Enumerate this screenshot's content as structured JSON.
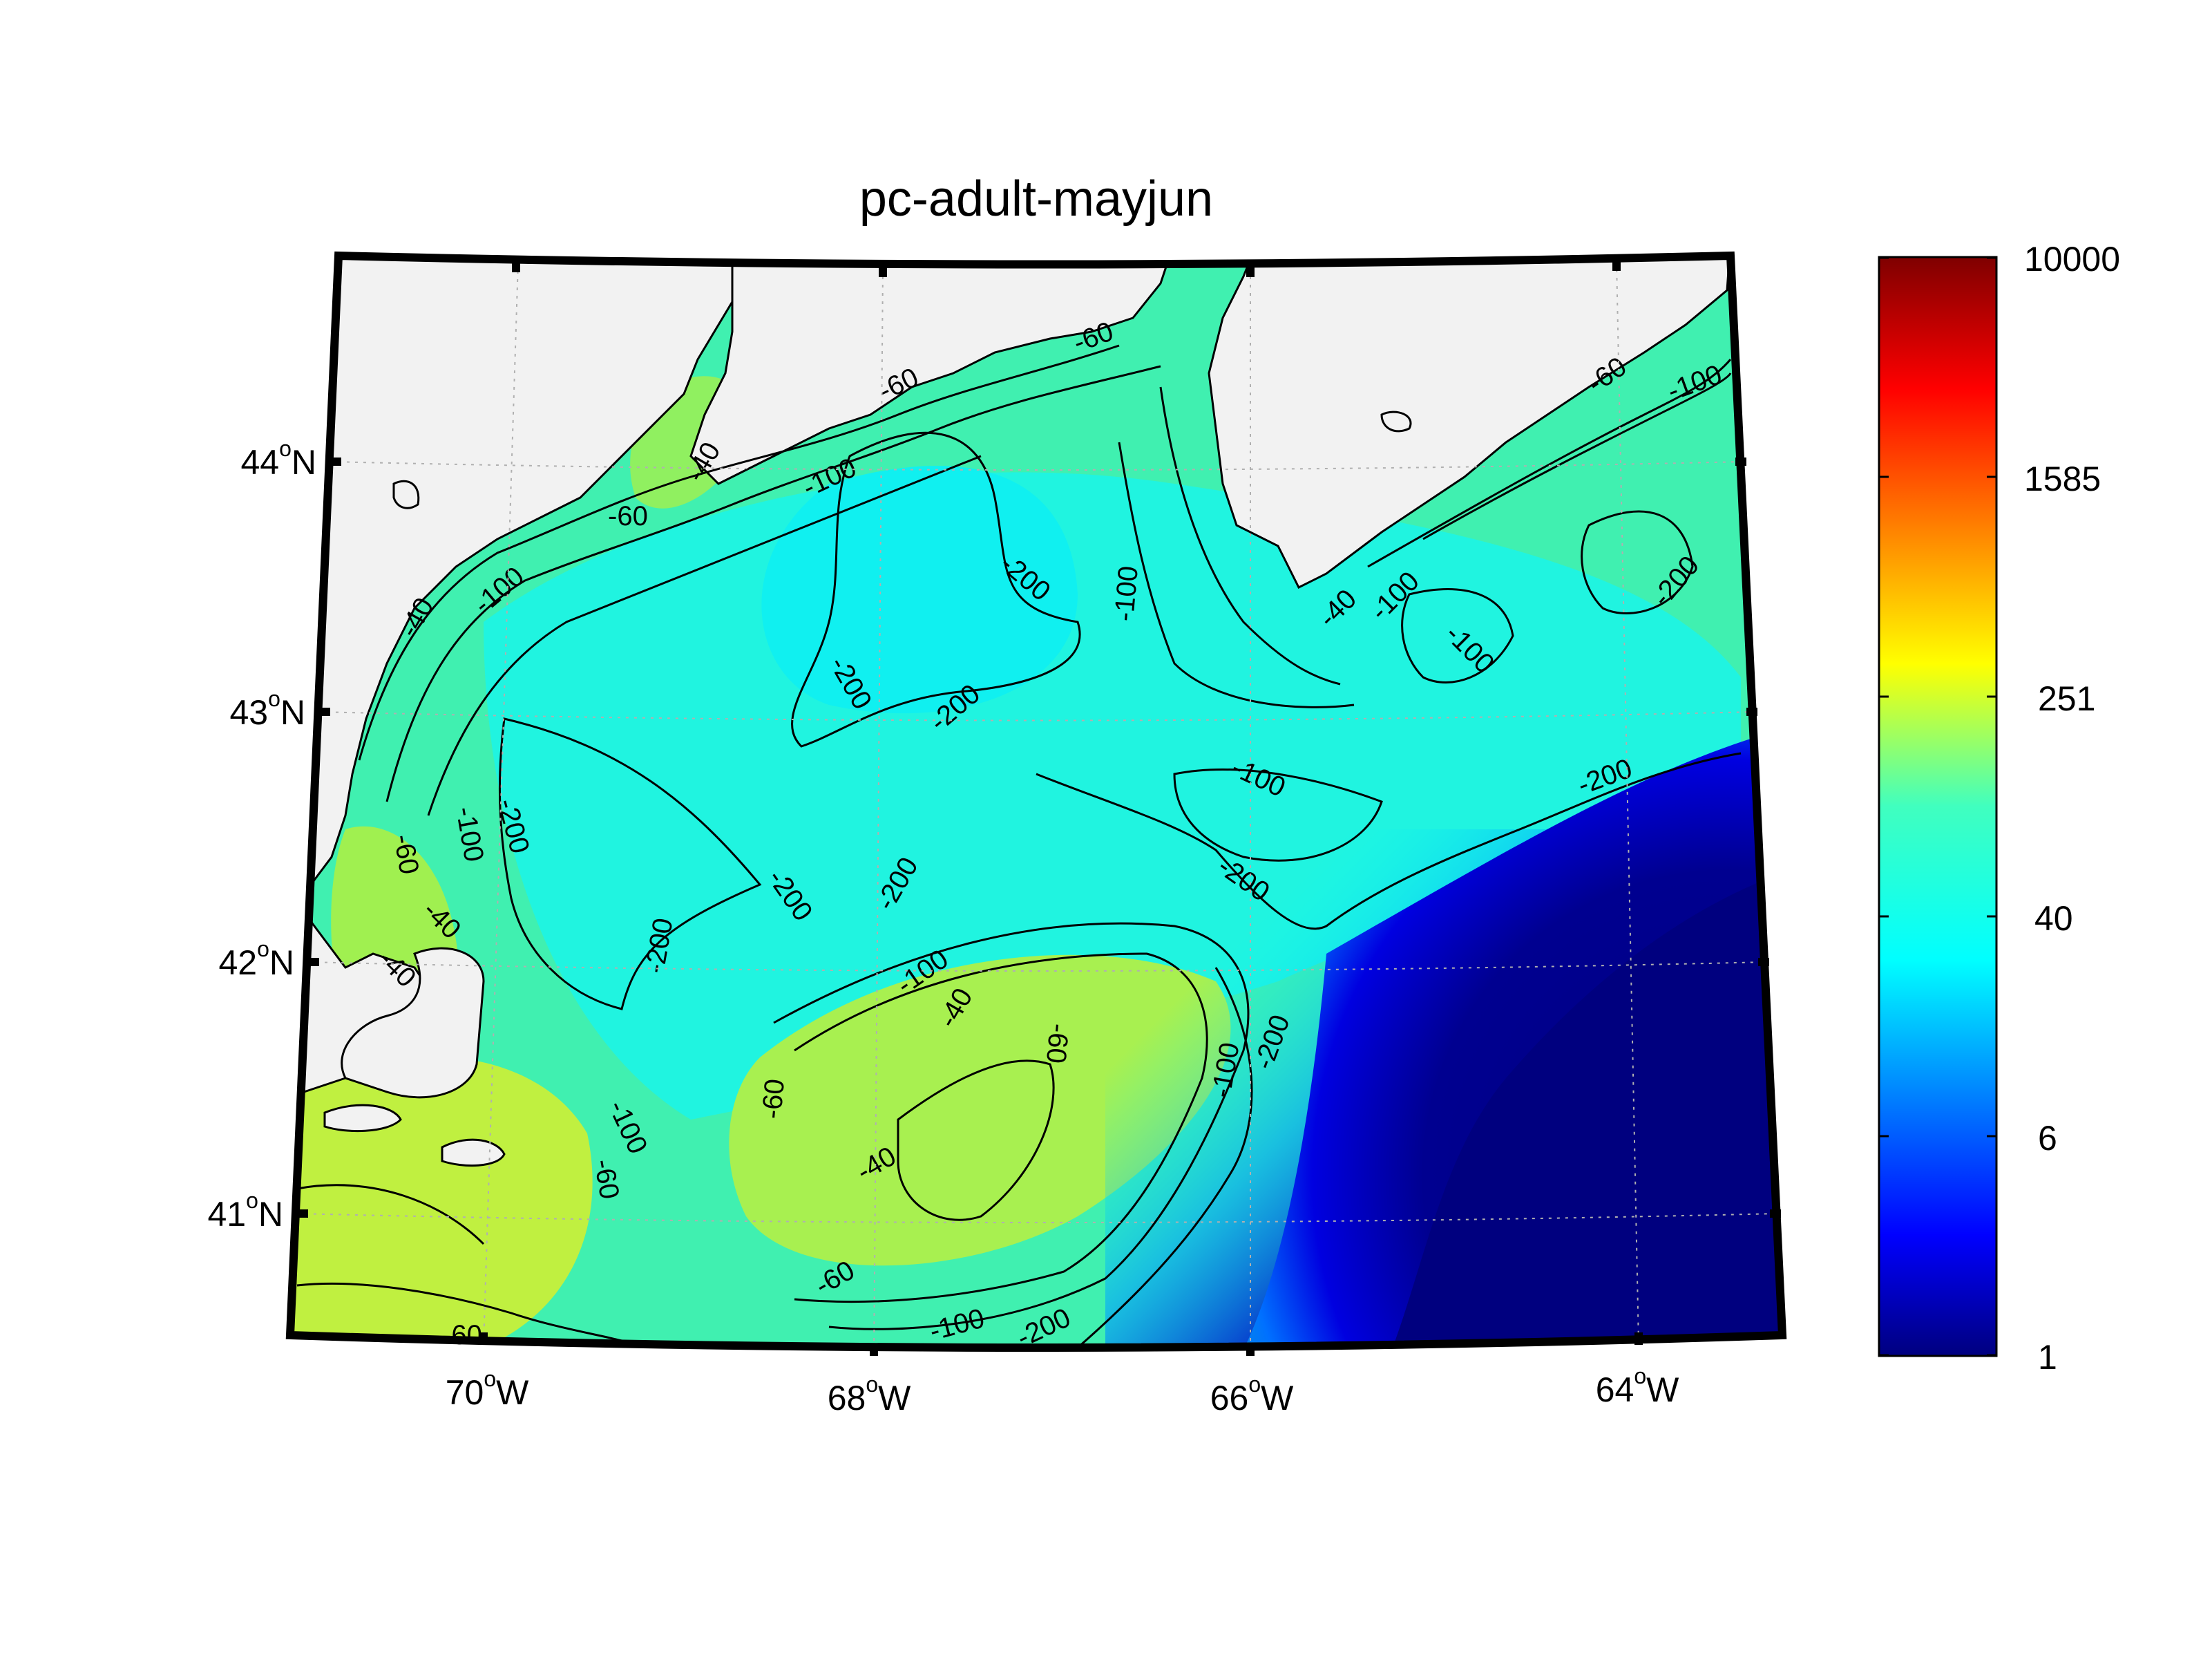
{
  "title": "pc-adult-mayjun",
  "map": {
    "lon_range": [
      -71,
      -63.1
    ],
    "lat_range": [
      40.5,
      44.75
    ],
    "longitude_ticks": [
      {
        "deg": "70",
        "hemi": "W"
      },
      {
        "deg": "68",
        "hemi": "W"
      },
      {
        "deg": "66",
        "hemi": "W"
      },
      {
        "deg": "64",
        "hemi": "W"
      }
    ],
    "latitude_ticks": [
      {
        "deg": "44",
        "hemi": "N"
      },
      {
        "deg": "43",
        "hemi": "N"
      },
      {
        "deg": "42",
        "hemi": "N"
      },
      {
        "deg": "41",
        "hemi": "N"
      }
    ],
    "degree_symbol": "o",
    "grid": "dotted",
    "land_color": "#f2f2f2",
    "contour_labels": [
      "-40",
      "-40",
      "-40",
      "-40",
      "-40",
      "-40",
      "-40",
      "-60",
      "-60",
      "-60",
      "-60",
      "-60",
      "-60",
      "-60",
      "-60",
      "-60",
      "-60",
      "-100",
      "-100",
      "-100",
      "-100",
      "-100",
      "-100",
      "-100",
      "-100",
      "-100",
      "-100",
      "-100",
      "-100",
      "-200",
      "-200",
      "-200",
      "-200",
      "-200",
      "-200",
      "-200",
      "-200",
      "-200",
      "-200",
      "-200",
      "-200"
    ]
  },
  "colorbar": {
    "scale": "log",
    "colormap": "jet",
    "range": [
      1,
      10000
    ],
    "tick_labels": [
      "10000",
      "1585",
      "251",
      "40",
      "6",
      "1"
    ],
    "tick_values": [
      10000,
      1585,
      251,
      40,
      6,
      1
    ]
  },
  "colors": {
    "frame": "#000000",
    "deep_water": "#00007f",
    "shelf_water": "#40f0b0",
    "bank_water": "#b8f040"
  }
}
